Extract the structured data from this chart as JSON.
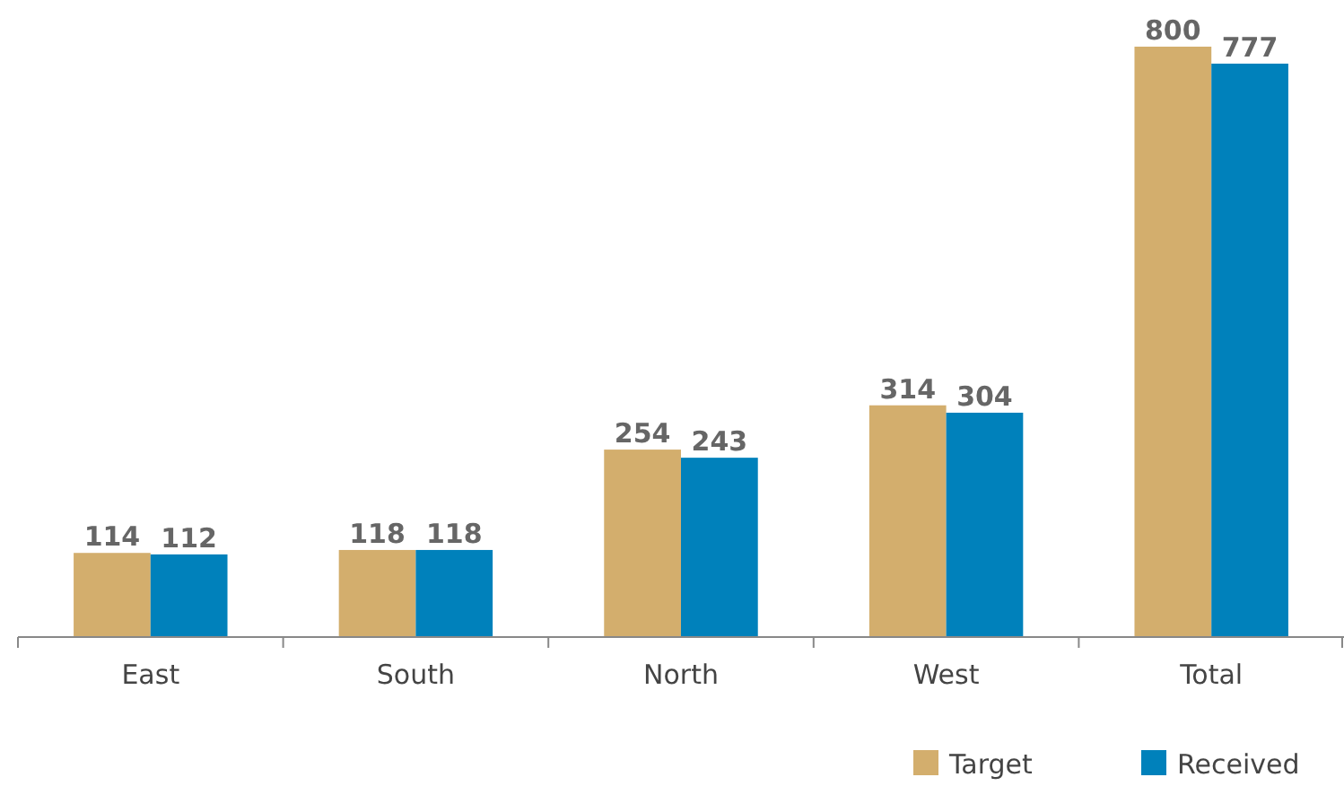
{
  "chart_data": {
    "type": "bar",
    "categories": [
      "East",
      "South",
      "North",
      "West",
      "Total"
    ],
    "series": [
      {
        "name": "Target",
        "color": "#d3ae6d",
        "values": [
          114,
          118,
          254,
          314,
          800
        ]
      },
      {
        "name": "Received",
        "color": "#0081bb",
        "values": [
          112,
          118,
          243,
          304,
          777
        ]
      }
    ],
    "data_labels": true,
    "legend": "bottom right"
  }
}
